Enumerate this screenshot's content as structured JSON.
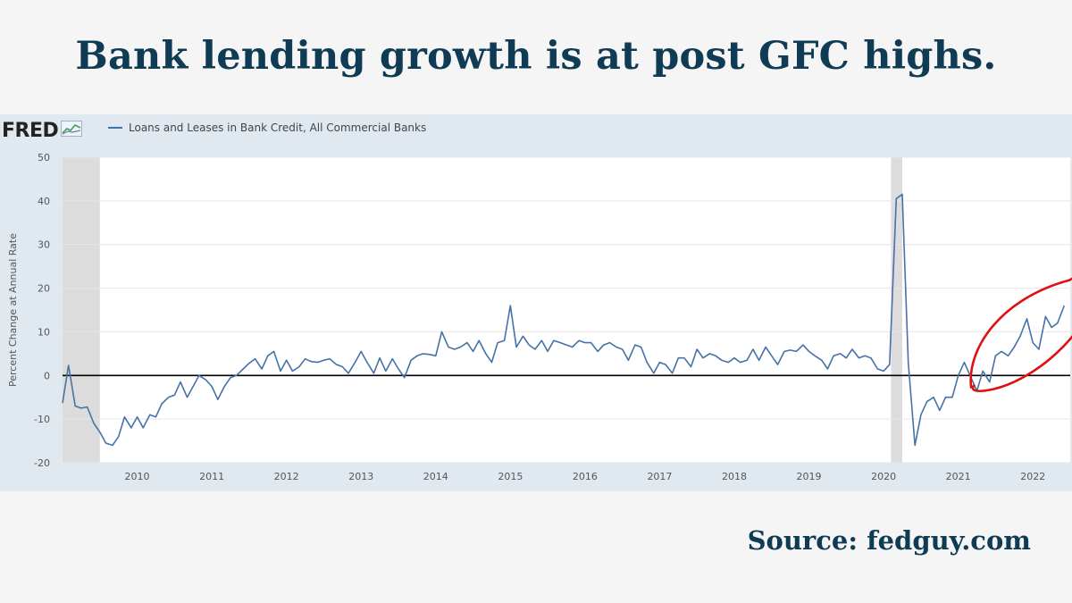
{
  "slide": {
    "title": "Bank lending growth is at post GFC highs.",
    "source": "Source: fedguy.com"
  },
  "fred": {
    "logo_text": "FRED",
    "logo_icon": "chart-line-icon"
  },
  "colors": {
    "title": "#0f3b55",
    "series": "#4572a7",
    "recession": "#dcdcdc",
    "highlight_circle": "#e01010",
    "panel_bg": "#e1e9f0"
  },
  "chart_data": {
    "type": "line",
    "title": "",
    "ylabel": "Percent Change at Annual Rate",
    "xlabel": "",
    "ylim": [
      -20,
      50
    ],
    "yticks": [
      -20,
      -10,
      0,
      10,
      20,
      30,
      40,
      50
    ],
    "xlim": [
      2009.0,
      2022.5
    ],
    "xticks": [
      "2010",
      "2011",
      "2012",
      "2013",
      "2014",
      "2015",
      "2016",
      "2017",
      "2018",
      "2019",
      "2020",
      "2021",
      "2022"
    ],
    "recessions": [
      [
        2009.0,
        2009.5
      ],
      [
        2020.1,
        2020.25
      ]
    ],
    "zero_line": true,
    "grid": "horizontal",
    "series": [
      {
        "name": "Loans and Leases in Bank Credit, All Commercial Banks",
        "points": [
          [
            2009.0,
            -6.3
          ],
          [
            2009.08,
            2.3
          ],
          [
            2009.17,
            -7.0
          ],
          [
            2009.25,
            -7.5
          ],
          [
            2009.33,
            -7.2
          ],
          [
            2009.42,
            -11.0
          ],
          [
            2009.5,
            -13.0
          ],
          [
            2009.58,
            -15.5
          ],
          [
            2009.67,
            -16.0
          ],
          [
            2009.75,
            -14.0
          ],
          [
            2009.83,
            -9.5
          ],
          [
            2009.92,
            -12.0
          ],
          [
            2010.0,
            -9.5
          ],
          [
            2010.08,
            -12.0
          ],
          [
            2010.17,
            -9.0
          ],
          [
            2010.25,
            -9.5
          ],
          [
            2010.33,
            -6.5
          ],
          [
            2010.42,
            -5.0
          ],
          [
            2010.5,
            -4.5
          ],
          [
            2010.58,
            -1.5
          ],
          [
            2010.67,
            -5.0
          ],
          [
            2010.75,
            -2.5
          ],
          [
            2010.83,
            0.0
          ],
          [
            2010.92,
            -1.0
          ],
          [
            2011.0,
            -2.5
          ],
          [
            2011.08,
            -5.5
          ],
          [
            2011.17,
            -2.5
          ],
          [
            2011.25,
            -0.5
          ],
          [
            2011.33,
            0.0
          ],
          [
            2011.42,
            1.5
          ],
          [
            2011.5,
            2.8
          ],
          [
            2011.58,
            3.8
          ],
          [
            2011.67,
            1.5
          ],
          [
            2011.75,
            4.5
          ],
          [
            2011.83,
            5.5
          ],
          [
            2011.92,
            1.0
          ],
          [
            2012.0,
            3.5
          ],
          [
            2012.08,
            1.0
          ],
          [
            2012.17,
            2.0
          ],
          [
            2012.25,
            3.8
          ],
          [
            2012.33,
            3.2
          ],
          [
            2012.42,
            3.0
          ],
          [
            2012.5,
            3.5
          ],
          [
            2012.58,
            3.8
          ],
          [
            2012.67,
            2.5
          ],
          [
            2012.75,
            2.0
          ],
          [
            2012.83,
            0.5
          ],
          [
            2012.92,
            3.0
          ],
          [
            2013.0,
            5.5
          ],
          [
            2013.08,
            3.0
          ],
          [
            2013.17,
            0.5
          ],
          [
            2013.25,
            4.0
          ],
          [
            2013.33,
            1.0
          ],
          [
            2013.42,
            3.8
          ],
          [
            2013.5,
            1.5
          ],
          [
            2013.58,
            -0.5
          ],
          [
            2013.67,
            3.5
          ],
          [
            2013.75,
            4.5
          ],
          [
            2013.83,
            5.0
          ],
          [
            2013.92,
            4.8
          ],
          [
            2014.0,
            4.5
          ],
          [
            2014.08,
            10.0
          ],
          [
            2014.17,
            6.5
          ],
          [
            2014.25,
            6.0
          ],
          [
            2014.33,
            6.5
          ],
          [
            2014.42,
            7.5
          ],
          [
            2014.5,
            5.5
          ],
          [
            2014.58,
            8.0
          ],
          [
            2014.67,
            5.0
          ],
          [
            2014.75,
            3.0
          ],
          [
            2014.83,
            7.5
          ],
          [
            2014.92,
            8.0
          ],
          [
            2015.0,
            16.0
          ],
          [
            2015.08,
            6.5
          ],
          [
            2015.17,
            9.0
          ],
          [
            2015.25,
            7.0
          ],
          [
            2015.33,
            6.0
          ],
          [
            2015.42,
            8.0
          ],
          [
            2015.5,
            5.5
          ],
          [
            2015.58,
            8.0
          ],
          [
            2015.67,
            7.5
          ],
          [
            2015.75,
            7.0
          ],
          [
            2015.83,
            6.5
          ],
          [
            2015.92,
            8.0
          ],
          [
            2016.0,
            7.5
          ],
          [
            2016.08,
            7.5
          ],
          [
            2016.17,
            5.5
          ],
          [
            2016.25,
            7.0
          ],
          [
            2016.33,
            7.5
          ],
          [
            2016.42,
            6.5
          ],
          [
            2016.5,
            6.0
          ],
          [
            2016.58,
            3.5
          ],
          [
            2016.67,
            7.0
          ],
          [
            2016.75,
            6.5
          ],
          [
            2016.83,
            3.0
          ],
          [
            2016.92,
            0.5
          ],
          [
            2017.0,
            3.0
          ],
          [
            2017.08,
            2.5
          ],
          [
            2017.17,
            0.5
          ],
          [
            2017.25,
            4.0
          ],
          [
            2017.33,
            4.0
          ],
          [
            2017.42,
            2.0
          ],
          [
            2017.5,
            6.0
          ],
          [
            2017.58,
            4.0
          ],
          [
            2017.67,
            5.0
          ],
          [
            2017.75,
            4.5
          ],
          [
            2017.83,
            3.5
          ],
          [
            2017.92,
            3.0
          ],
          [
            2018.0,
            4.0
          ],
          [
            2018.08,
            3.0
          ],
          [
            2018.17,
            3.5
          ],
          [
            2018.25,
            6.0
          ],
          [
            2018.33,
            3.5
          ],
          [
            2018.42,
            6.5
          ],
          [
            2018.5,
            4.5
          ],
          [
            2018.58,
            2.5
          ],
          [
            2018.67,
            5.5
          ],
          [
            2018.75,
            5.8
          ],
          [
            2018.83,
            5.5
          ],
          [
            2018.92,
            7.0
          ],
          [
            2019.0,
            5.5
          ],
          [
            2019.08,
            4.5
          ],
          [
            2019.17,
            3.5
          ],
          [
            2019.25,
            1.5
          ],
          [
            2019.33,
            4.5
          ],
          [
            2019.42,
            5.0
          ],
          [
            2019.5,
            4.0
          ],
          [
            2019.58,
            6.0
          ],
          [
            2019.67,
            4.0
          ],
          [
            2019.75,
            4.5
          ],
          [
            2019.83,
            4.0
          ],
          [
            2019.92,
            1.5
          ],
          [
            2020.0,
            1.0
          ],
          [
            2020.08,
            2.5
          ],
          [
            2020.17,
            40.5
          ],
          [
            2020.25,
            41.5
          ],
          [
            2020.33,
            3.0
          ],
          [
            2020.42,
            -16.0
          ],
          [
            2020.5,
            -9.0
          ],
          [
            2020.58,
            -6.0
          ],
          [
            2020.67,
            -5.0
          ],
          [
            2020.75,
            -8.0
          ],
          [
            2020.83,
            -5.0
          ],
          [
            2020.92,
            -5.0
          ],
          [
            2021.0,
            0.0
          ],
          [
            2021.08,
            3.0
          ],
          [
            2021.17,
            -0.5
          ],
          [
            2021.25,
            -3.5
          ],
          [
            2021.33,
            1.0
          ],
          [
            2021.42,
            -1.5
          ],
          [
            2021.5,
            4.5
          ],
          [
            2021.58,
            5.5
          ],
          [
            2021.67,
            4.5
          ],
          [
            2021.75,
            6.5
          ],
          [
            2021.83,
            9.0
          ],
          [
            2021.92,
            13.0
          ],
          [
            2022.0,
            7.5
          ],
          [
            2022.08,
            6.0
          ],
          [
            2022.17,
            13.5
          ],
          [
            2022.25,
            11.0
          ],
          [
            2022.33,
            12.0
          ],
          [
            2022.42,
            16.0
          ]
        ]
      }
    ]
  }
}
